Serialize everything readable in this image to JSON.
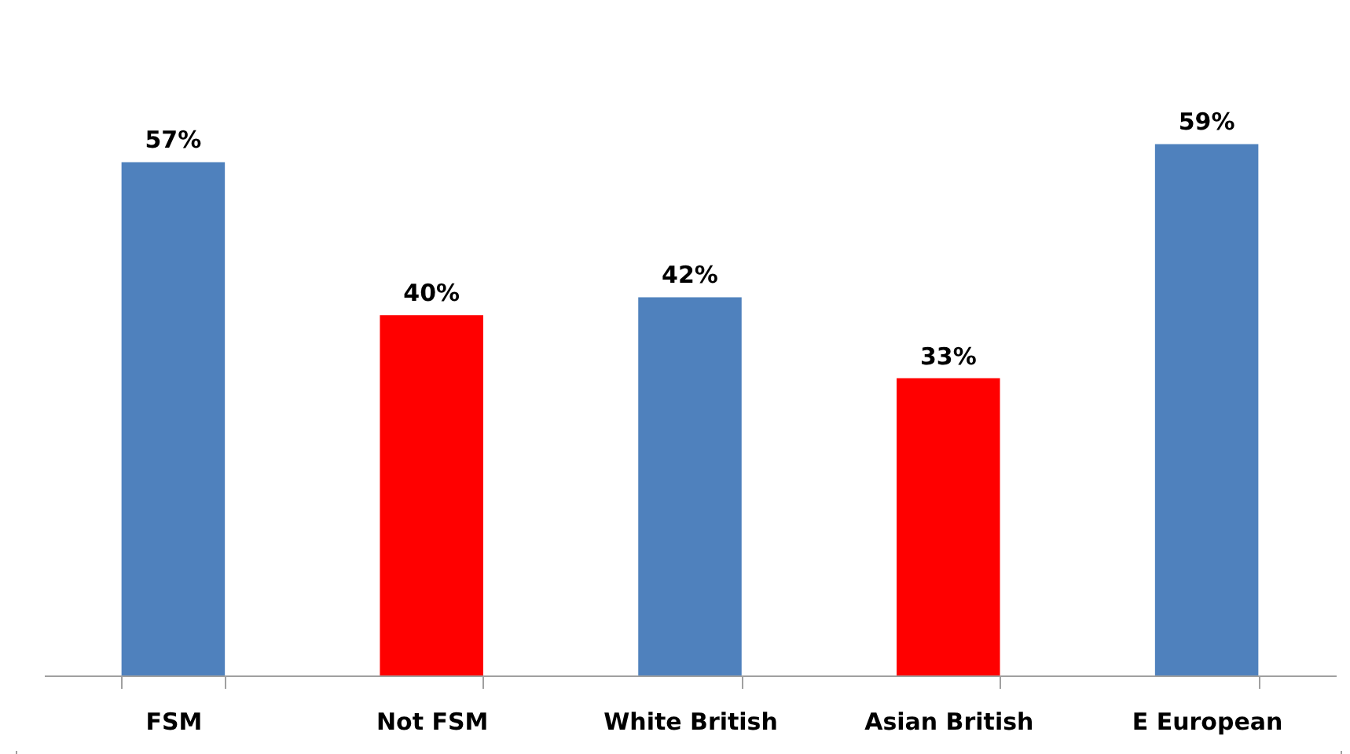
{
  "chart_data": {
    "type": "bar",
    "categories": [
      "FSM",
      "Not FSM",
      "White British",
      "Asian British",
      "E European"
    ],
    "values": [
      57,
      40,
      42,
      33,
      59
    ],
    "colors": [
      "#4f81bd",
      "#ff0000",
      "#4f81bd",
      "#ff0000",
      "#4f81bd"
    ],
    "value_labels": [
      "57%",
      "40%",
      "42%",
      "33%",
      "59%"
    ],
    "grid": false
  }
}
